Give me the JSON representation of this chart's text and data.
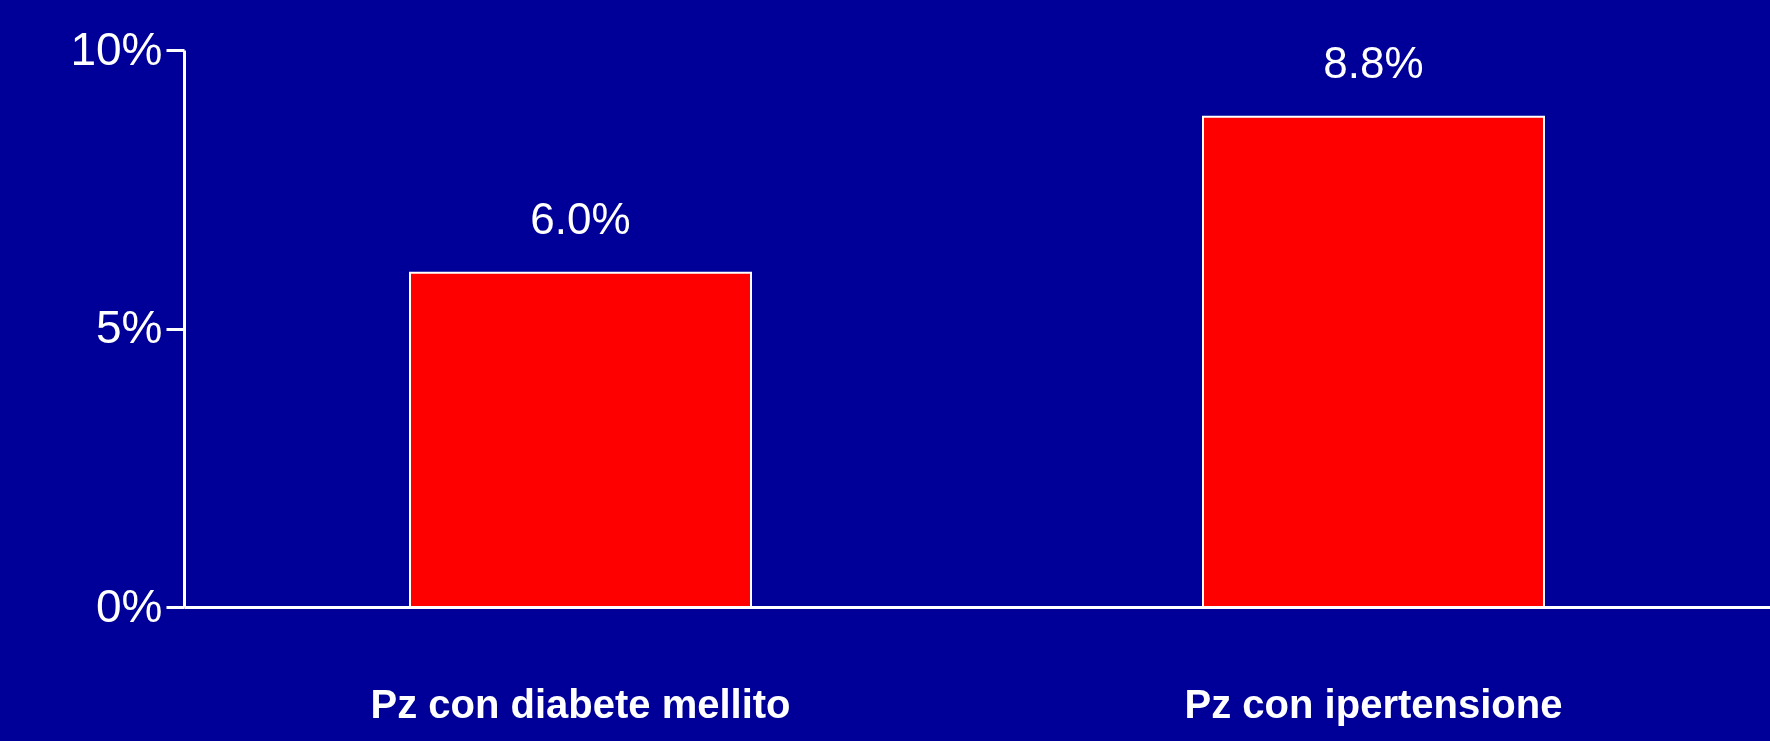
{
  "chart_data": {
    "type": "bar",
    "categories": [
      "Pz con diabete mellito",
      "Pz con ipertensione"
    ],
    "values": [
      6.0,
      8.8
    ],
    "value_labels": [
      "6.0%",
      "8.8%"
    ],
    "color": "#ff0000",
    "ylim": [
      0,
      10
    ],
    "yticks": [
      {
        "value": 0,
        "label": "0%"
      },
      {
        "value": 5,
        "label": "5%"
      },
      {
        "value": 10,
        "label": "10%"
      }
    ],
    "grid": false
  }
}
